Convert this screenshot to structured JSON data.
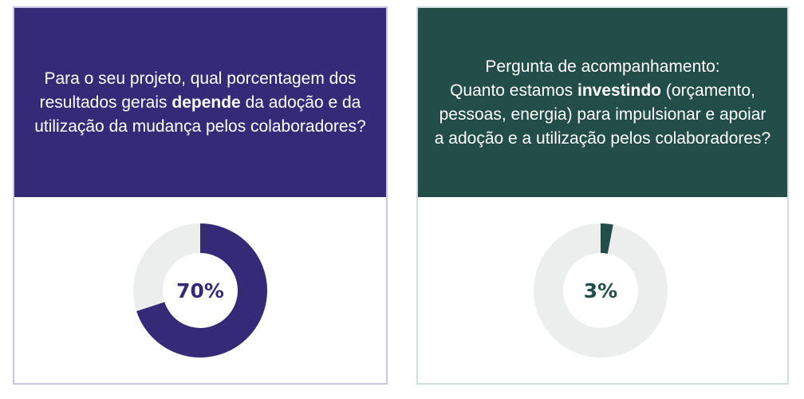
{
  "chart_data": [
    {
      "type": "pie",
      "donut": true,
      "title_parts": [
        "Para o seu projeto, qual porcentagem dos resultados gerais ",
        "depende",
        " da adoção e da utilização da mudança pelos colaboradores?"
      ],
      "value": 70,
      "label": "70%",
      "colors": {
        "fill": "#352a77",
        "rest": "#eceeed"
      }
    },
    {
      "type": "pie",
      "donut": true,
      "title_parts": [
        "Pergunta de acompanhamento:",
        "Quanto estamos ",
        "investindo",
        " (orçamento, pessoas, energia) para impulsionar e apoiar a adoção e a utilização pelos colaboradores?"
      ],
      "value": 3,
      "label": "3%",
      "colors": {
        "fill": "#234d48",
        "rest": "#eceeed"
      }
    }
  ]
}
